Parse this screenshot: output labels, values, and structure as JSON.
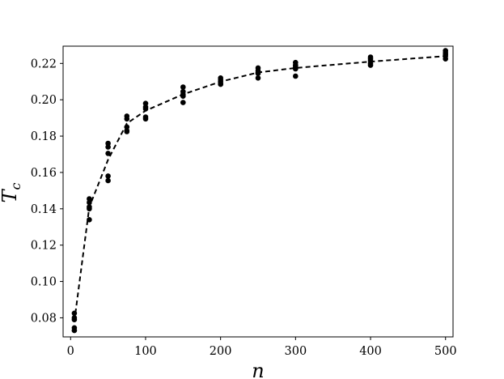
{
  "chart_data": {
    "type": "scatter",
    "xlabel": "n",
    "ylabel_main": "T",
    "ylabel_sub": "c",
    "xlim": [
      -10,
      510
    ],
    "ylim": [
      0.0695,
      0.2295
    ],
    "xticks": [
      0,
      100,
      200,
      300,
      400,
      500
    ],
    "xtick_labels": [
      "0",
      "100",
      "200",
      "300",
      "400",
      "500"
    ],
    "yticks": [
      0.08,
      0.1,
      0.12,
      0.14,
      0.16,
      0.18,
      0.2,
      0.22
    ],
    "ytick_labels": [
      "0.08",
      "0.10",
      "0.12",
      "0.14",
      "0.16",
      "0.18",
      "0.20",
      "0.22"
    ],
    "grid": false,
    "legend": "none",
    "colors": {
      "points": "#000000",
      "line": "#000000",
      "frame": "#000000",
      "background": "#ffffff"
    },
    "series": [
      {
        "kind": "scatter",
        "x": [
          5,
          5,
          5,
          5,
          5,
          25,
          25,
          25,
          25,
          25,
          50,
          50,
          50,
          50,
          50,
          75,
          75,
          75,
          75,
          75,
          100,
          100,
          100,
          100,
          100,
          150,
          150,
          150,
          150,
          150,
          200,
          200,
          200,
          200,
          200,
          250,
          250,
          250,
          250,
          250,
          300,
          300,
          300,
          300,
          300,
          400,
          400,
          400,
          400,
          400,
          500,
          500,
          500,
          500,
          500
        ],
        "y": [
          0.0825,
          0.08,
          0.079,
          0.0745,
          0.073,
          0.1455,
          0.1435,
          0.141,
          0.14,
          0.134,
          0.176,
          0.174,
          0.1705,
          0.158,
          0.1555,
          0.191,
          0.1895,
          0.185,
          0.183,
          0.1825,
          0.198,
          0.196,
          0.195,
          0.1905,
          0.1895,
          0.207,
          0.2045,
          0.203,
          0.202,
          0.1985,
          0.212,
          0.211,
          0.21,
          0.209,
          0.2085,
          0.2175,
          0.216,
          0.215,
          0.2145,
          0.212,
          0.2205,
          0.219,
          0.218,
          0.217,
          0.213,
          0.2235,
          0.2225,
          0.2215,
          0.22,
          0.219,
          0.227,
          0.226,
          0.225,
          0.224,
          0.2225
        ]
      },
      {
        "kind": "dashed-line",
        "x": [
          5,
          25,
          50,
          75,
          100,
          150,
          200,
          250,
          300,
          400,
          500
        ],
        "y": [
          0.078,
          0.141,
          0.167,
          0.187,
          0.194,
          0.203,
          0.21,
          0.215,
          0.2175,
          0.221,
          0.224
        ]
      }
    ]
  }
}
